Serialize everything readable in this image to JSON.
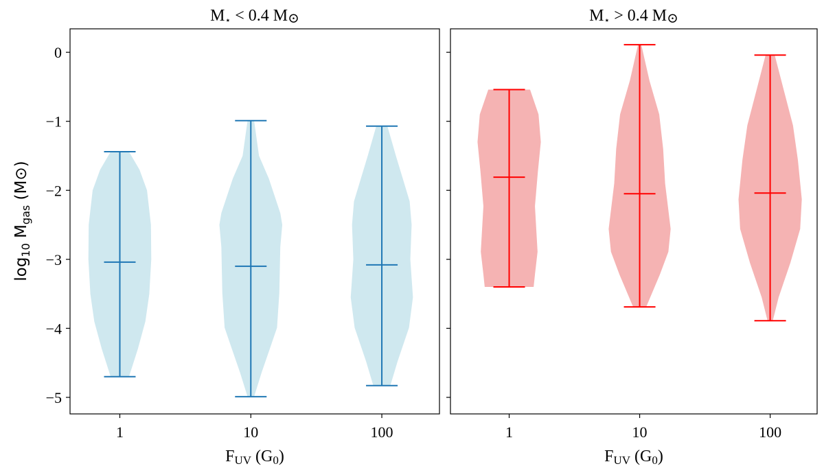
{
  "chart_data": [
    {
      "type": "violin",
      "title_parts": {
        "main": "M",
        "star": "⋆",
        "rel": " < 0.4 M",
        "sun": "⊙"
      },
      "title": "M⋆ < 0.4 M⊙",
      "xlabel_parts": {
        "main": "F",
        "sub": "UV",
        "rest": " (G",
        "sub2": "0",
        "close": ")"
      },
      "xlabel": "FUV (G0)",
      "ylabel_parts": {
        "log": "log",
        "logsub": "10",
        "m": " M",
        "msub": "gas",
        "unit": " (M",
        "sun": "⊙",
        "close": ")"
      },
      "ylabel": "log10 Mgas (M⊙)",
      "categories": [
        "1",
        "10",
        "100"
      ],
      "ylim": [
        -5.24,
        0.34
      ],
      "xlim": [
        0.62,
        3.44
      ],
      "yticks": [
        0,
        -1,
        -2,
        -3,
        -4,
        -5
      ],
      "ytick_labels": [
        "0",
        "−1",
        "−2",
        "−3",
        "−4",
        "−5"
      ],
      "show_ytick_labels": true,
      "fill_color": "#cfe8ef",
      "line_color": "#1f77b4",
      "violins": [
        {
          "min": -4.7,
          "max": -1.44,
          "median": -3.04,
          "density": [
            [
              -1.44,
              0.28
            ],
            [
              -1.7,
              0.6
            ],
            [
              -2.0,
              0.83
            ],
            [
              -2.5,
              0.95
            ],
            [
              -3.0,
              0.96
            ],
            [
              -3.5,
              0.9
            ],
            [
              -3.9,
              0.78
            ],
            [
              -4.3,
              0.55
            ],
            [
              -4.7,
              0.28
            ]
          ]
        },
        {
          "min": -4.99,
          "max": -0.99,
          "median": -3.1,
          "density": [
            [
              -0.99,
              0.1
            ],
            [
              -1.5,
              0.25
            ],
            [
              -1.83,
              0.55
            ],
            [
              -2.33,
              0.9
            ],
            [
              -2.5,
              0.96
            ],
            [
              -2.82,
              0.9
            ],
            [
              -3.49,
              0.87
            ],
            [
              -3.99,
              0.8
            ],
            [
              -4.31,
              0.57
            ],
            [
              -4.64,
              0.33
            ],
            [
              -4.99,
              0.1
            ]
          ]
        },
        {
          "min": -4.83,
          "max": -1.07,
          "median": -3.08,
          "density": [
            [
              -1.07,
              0.17
            ],
            [
              -1.5,
              0.43
            ],
            [
              -2.16,
              0.85
            ],
            [
              -2.5,
              0.91
            ],
            [
              -3.0,
              0.87
            ],
            [
              -3.55,
              0.95
            ],
            [
              -3.99,
              0.83
            ],
            [
              -4.48,
              0.48
            ],
            [
              -4.83,
              0.26
            ]
          ]
        }
      ]
    },
    {
      "type": "violin",
      "title_parts": {
        "main": "M",
        "star": "⋆",
        "rel": " > 0.4 M",
        "sun": "⊙"
      },
      "title": "M⋆ > 0.4 M⊙",
      "xlabel_parts": {
        "main": "F",
        "sub": "UV",
        "rest": " (G",
        "sub2": "0",
        "close": ")"
      },
      "xlabel": "FUV (G0)",
      "categories": [
        "1",
        "10",
        "100"
      ],
      "ylim": [
        -5.24,
        0.34
      ],
      "xlim": [
        0.55,
        3.36
      ],
      "yticks": [
        0,
        -1,
        -2,
        -3,
        -4,
        -5
      ],
      "show_ytick_labels": false,
      "fill_color": "#f5b3b3",
      "line_color": "#ff0000",
      "violins": [
        {
          "min": -3.4,
          "max": -0.54,
          "median": -1.81,
          "density": [
            [
              -0.54,
              0.64
            ],
            [
              -0.9,
              0.9
            ],
            [
              -1.3,
              0.97
            ],
            [
              -1.73,
              0.88
            ],
            [
              -2.23,
              0.79
            ],
            [
              -2.89,
              0.87
            ],
            [
              -3.22,
              0.79
            ],
            [
              -3.4,
              0.75
            ]
          ]
        },
        {
          "min": -3.69,
          "max": 0.11,
          "median": -2.05,
          "density": [
            [
              0.11,
              0.05
            ],
            [
              -0.41,
              0.3
            ],
            [
              -0.9,
              0.6
            ],
            [
              -1.4,
              0.72
            ],
            [
              -1.9,
              0.78
            ],
            [
              -2.56,
              0.95
            ],
            [
              -2.89,
              0.88
            ],
            [
              -3.22,
              0.62
            ],
            [
              -3.69,
              0.2
            ]
          ]
        },
        {
          "min": -3.89,
          "max": -0.04,
          "median": -2.04,
          "density": [
            [
              -0.04,
              0.14
            ],
            [
              -0.57,
              0.43
            ],
            [
              -1.06,
              0.7
            ],
            [
              -1.56,
              0.85
            ],
            [
              -2.13,
              0.97
            ],
            [
              -2.56,
              0.92
            ],
            [
              -3.05,
              0.62
            ],
            [
              -3.55,
              0.26
            ],
            [
              -3.89,
              0.08
            ]
          ]
        }
      ]
    }
  ]
}
